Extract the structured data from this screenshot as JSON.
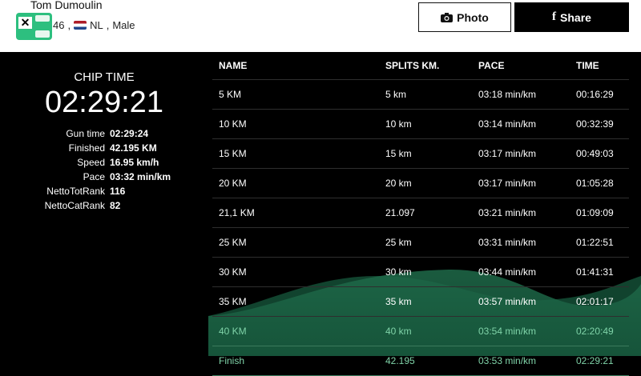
{
  "athlete": {
    "name": "Tom Dumoulin",
    "bib": "46",
    "country": "NL",
    "gender": "Male",
    "separator": ","
  },
  "buttons": {
    "photo": "Photo",
    "share": "Share"
  },
  "summary": {
    "chip_label": "CHIP TIME",
    "chip_time": "02:29:21",
    "stats": [
      {
        "label": "Gun time",
        "value": "02:29:24"
      },
      {
        "label": "Finished",
        "value": "42.195 KM"
      },
      {
        "label": "Speed",
        "value": "16.95 km/h"
      },
      {
        "label": "Pace",
        "value": "03:32 min/km"
      },
      {
        "label": "NettoTotRank",
        "value": "116"
      },
      {
        "label": "NettoCatRank",
        "value": "82"
      }
    ]
  },
  "table": {
    "headers": [
      "NAME",
      "SPLITS KM.",
      "PACE",
      "TIME"
    ],
    "rows": [
      [
        "5 KM",
        "5 km",
        "03:18 min/km",
        "00:16:29"
      ],
      [
        "10 KM",
        "10 km",
        "03:14 min/km",
        "00:32:39"
      ],
      [
        "15 KM",
        "15 km",
        "03:17 min/km",
        "00:49:03"
      ],
      [
        "20 KM",
        "20 km",
        "03:17 min/km",
        "01:05:28"
      ],
      [
        "21,1 KM",
        "21.097",
        "03:21 min/km",
        "01:09:09"
      ],
      [
        "25 KM",
        "25 km",
        "03:31 min/km",
        "01:22:51"
      ],
      [
        "30 KM",
        "30 km",
        "03:44 min/km",
        "01:41:31"
      ],
      [
        "35 KM",
        "35 km",
        "03:57 min/km",
        "02:01:17"
      ],
      [
        "40 KM",
        "40 km",
        "03:54 min/km",
        "02:20:49"
      ],
      [
        "Finish",
        "42.195",
        "03:53 min/km",
        "02:29:21"
      ]
    ]
  },
  "colors": {
    "accent": "#2dbf7f",
    "wave": "#1f6b4a"
  }
}
